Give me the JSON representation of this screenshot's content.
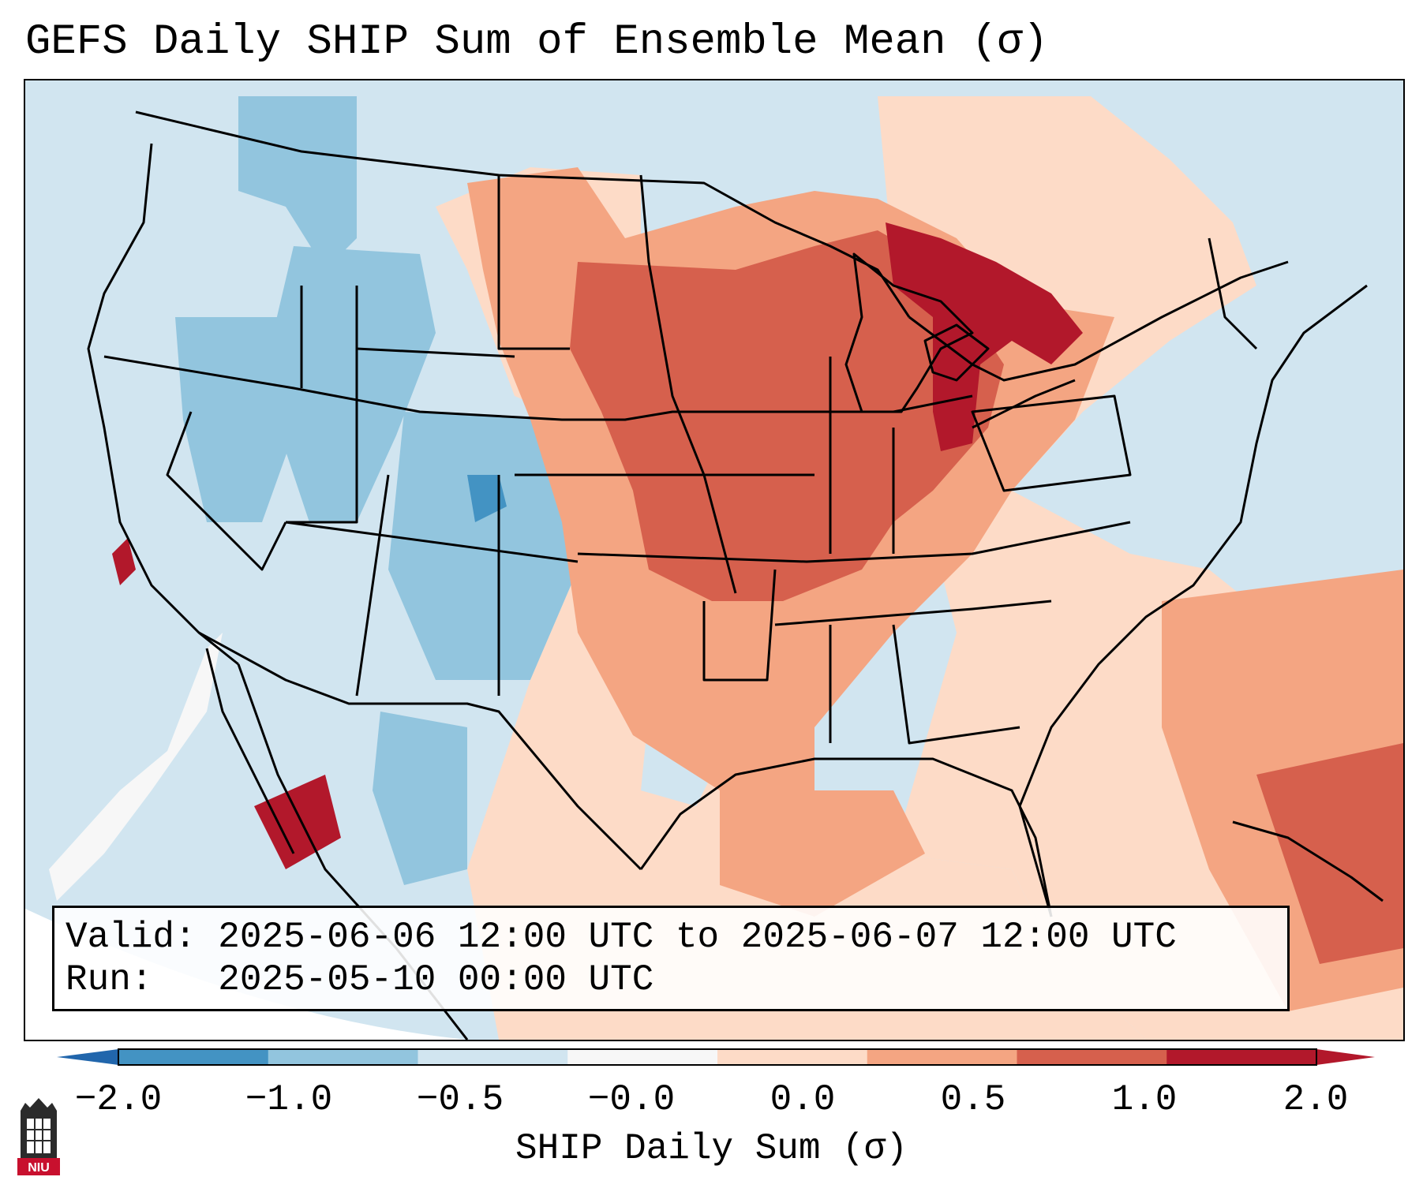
{
  "title": "GEFS Daily SHIP Sum of Ensemble Mean (σ)",
  "info": {
    "valid_label": "Valid:",
    "valid_value": "2025-06-06 12:00 UTC to 2025-06-07 12:00 UTC",
    "run_label": "Run:",
    "run_value": "2025-05-10 00:00 UTC"
  },
  "colorbar": {
    "title": "SHIP Daily Sum (σ)",
    "ticks": [
      "−2.0",
      "−1.0",
      "−0.5",
      "−0.0",
      "0.0",
      "0.5",
      "1.0",
      "2.0"
    ],
    "colors": [
      "#4393c3",
      "#92c5de",
      "#d1e5f0",
      "#f7f7f7",
      "#fddbc7",
      "#f4a582",
      "#d6604d",
      "#b2182b"
    ],
    "under_color": "#2166ac",
    "over_color": "#b2182b"
  },
  "logo": {
    "name": "niu-logo",
    "text": "NIU"
  }
}
